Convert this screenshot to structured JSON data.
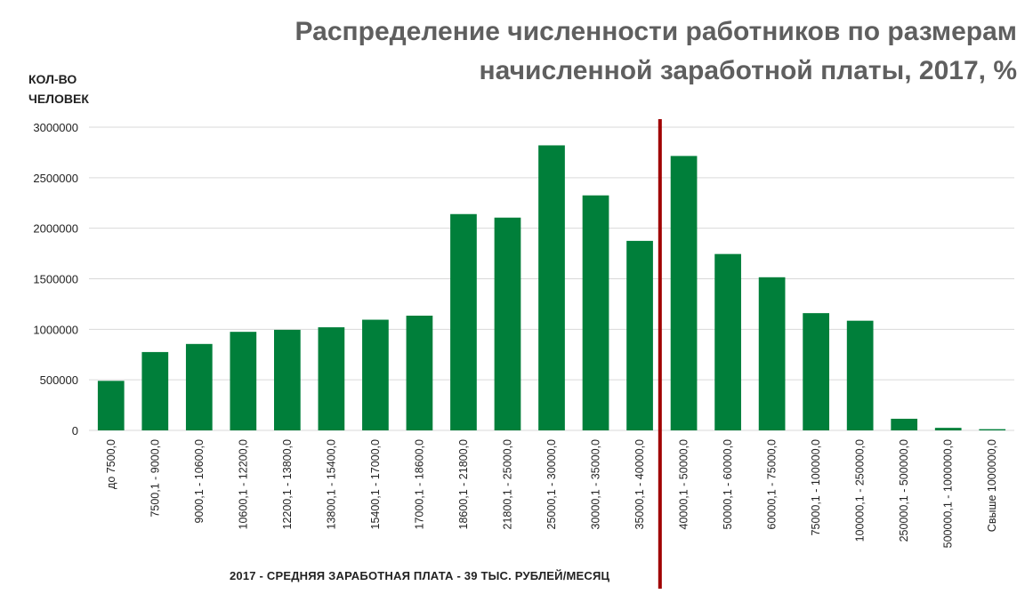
{
  "title_lines": [
    "Распределение численности работников по размерам",
    "начисленной заработной платы, 2017, %"
  ],
  "ylabel_lines": [
    "КОЛ-ВО",
    "ЧЕЛОВЕК"
  ],
  "xlabel": "2017 - СРЕДНЯЯ ЗАРАБОТНАЯ ПЛАТА - 39 ТЫС. РУБЛЕЙ/МЕСЯЦ",
  "colors": {
    "bar": "#007f3a",
    "marker": "#a00000",
    "grid": "#d9d9d9",
    "title": "#5f5f5f"
  },
  "chart_data": {
    "type": "bar",
    "title": "Распределение численности работников по размерам начисленной заработной платы, 2017, %",
    "xlabel": "2017 - СРЕДНЯЯ ЗАРАБОТНАЯ ПЛАТА - 39 ТЫС. РУБЛЕЙ/МЕСЯЦ",
    "ylabel": "КОЛ-ВО ЧЕЛОВЕК",
    "ylim": [
      0,
      3000000
    ],
    "yticks": [
      0,
      500000,
      1000000,
      1500000,
      2000000,
      2500000,
      3000000
    ],
    "yticklabels": [
      "0",
      "500000",
      "1000000",
      "1500000",
      "2000000",
      "2500000",
      "3000000"
    ],
    "grid": true,
    "categories": [
      "до 7500,0",
      "7500,1 - 9000,0",
      "9000,1 - 10600,0",
      "10600,1 - 12200,0",
      "12200,1 - 13800,0",
      "13800,1 - 15400,0",
      "15400,1 - 17000,0",
      "17000,1 - 18600,0",
      "18600,1 - 21800,0",
      "21800,1 - 25000,0",
      "25000,1 - 30000,0",
      "30000,1 - 35000,0",
      "35000,1 - 40000,0",
      "40000,1 - 50000,0",
      "50000,1 - 60000,0",
      "60000,1 - 75000,0",
      "75000,1 - 100000,0",
      "100000,1 - 250000,0",
      "250000,1 - 500000,0",
      "500000,1 - 1000000,0",
      "Свыше 1000000,0"
    ],
    "values": [
      490000,
      775000,
      855000,
      975000,
      995000,
      1020000,
      1095000,
      1135000,
      2140000,
      2105000,
      2820000,
      2325000,
      1875000,
      2715000,
      1745000,
      1515000,
      1160000,
      1085000,
      115000,
      25000,
      12000
    ],
    "marker_value": 39000
  }
}
